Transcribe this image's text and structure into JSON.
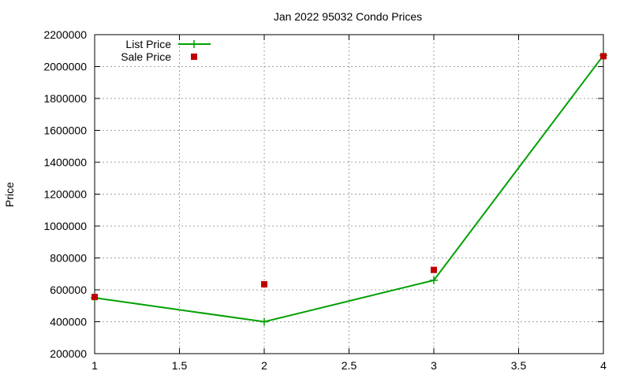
{
  "chart_data": {
    "type": "line",
    "title": "Jan 2022 95032 Condo Prices",
    "xlabel": "",
    "ylabel": "Price",
    "xlim": [
      1,
      4
    ],
    "ylim": [
      200000,
      2200000
    ],
    "x_ticks": [
      "1",
      "1.5",
      "2",
      "2.5",
      "3",
      "3.5",
      "4"
    ],
    "x_tick_values": [
      1,
      1.5,
      2,
      2.5,
      3,
      3.5,
      4
    ],
    "y_ticks": [
      "200000",
      "400000",
      "600000",
      "800000",
      "1000000",
      "1200000",
      "1400000",
      "1600000",
      "1800000",
      "2000000",
      "2200000"
    ],
    "y_tick_values": [
      200000,
      400000,
      600000,
      800000,
      1000000,
      1200000,
      1400000,
      1600000,
      1800000,
      2000000,
      2200000
    ],
    "grid": true,
    "legend_position": "top-left",
    "series": [
      {
        "name": "List Price",
        "style": "line-with-plus-markers",
        "color": "#00a000",
        "x": [
          1,
          2,
          3,
          4
        ],
        "y": [
          550000,
          400000,
          660000,
          2070000
        ]
      },
      {
        "name": "Sale Price",
        "style": "square-markers",
        "color": "#c00000",
        "x": [
          1,
          2,
          3,
          4
        ],
        "y": [
          555000,
          635000,
          725000,
          2065000
        ]
      }
    ]
  }
}
